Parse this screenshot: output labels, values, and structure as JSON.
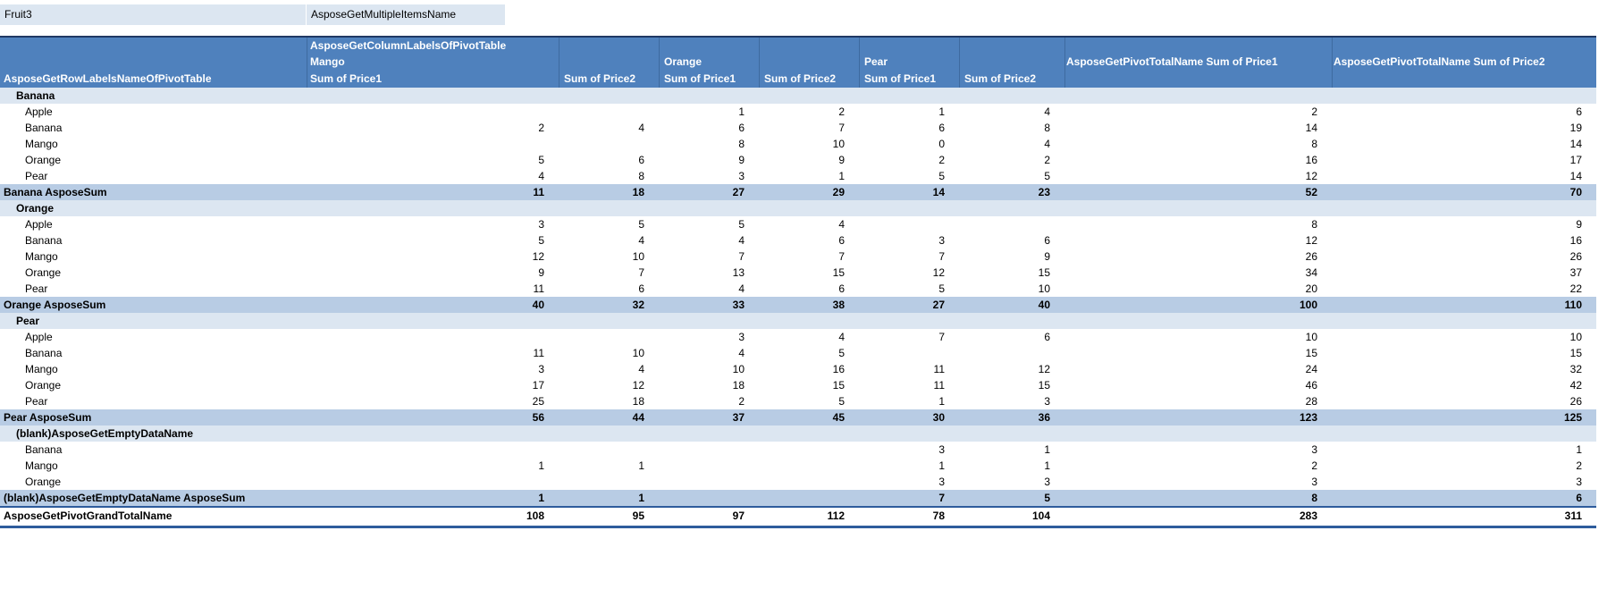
{
  "filter_row": {
    "field_label": "Fruit3",
    "value_label": "AsposeGetMultipleItemsName"
  },
  "pivot_header": {
    "column_labels_title": "AsposeGetColumnLabelsOfPivotTable",
    "row_labels_title": "AsposeGetRowLabelsNameOfPivotTable",
    "col_group_labels": [
      "Mango",
      "Orange",
      "Pear"
    ],
    "measure_labels": [
      "Sum of Price1",
      "Sum of Price2"
    ],
    "grand_total_col_labels": [
      "AsposeGetPivotTotalName Sum of Price1",
      "AsposeGetPivotTotalName Sum of Price2"
    ]
  },
  "pivot_rows": [
    {
      "type": "group",
      "label": "Banana",
      "values": [
        "",
        "",
        "",
        "",
        "",
        "",
        "",
        ""
      ]
    },
    {
      "type": "item",
      "label": "Apple",
      "values": [
        "",
        "",
        1,
        2,
        1,
        4,
        2,
        6
      ]
    },
    {
      "type": "item",
      "label": "Banana",
      "values": [
        2,
        4,
        6,
        7,
        6,
        8,
        14,
        19
      ]
    },
    {
      "type": "item",
      "label": "Mango",
      "values": [
        "",
        "",
        8,
        10,
        0,
        4,
        8,
        14
      ]
    },
    {
      "type": "item",
      "label": "Orange",
      "values": [
        5,
        6,
        9,
        9,
        2,
        2,
        16,
        17
      ]
    },
    {
      "type": "item",
      "label": "Pear",
      "values": [
        4,
        8,
        3,
        1,
        5,
        5,
        12,
        14
      ]
    },
    {
      "type": "subtotal",
      "label": "Banana AsposeSum",
      "values": [
        11,
        18,
        27,
        29,
        14,
        23,
        52,
        70
      ]
    },
    {
      "type": "group",
      "label": "Orange",
      "values": [
        "",
        "",
        "",
        "",
        "",
        "",
        "",
        ""
      ]
    },
    {
      "type": "item",
      "label": "Apple",
      "values": [
        3,
        5,
        5,
        4,
        "",
        "",
        8,
        9
      ]
    },
    {
      "type": "item",
      "label": "Banana",
      "values": [
        5,
        4,
        4,
        6,
        3,
        6,
        12,
        16
      ]
    },
    {
      "type": "item",
      "label": "Mango",
      "values": [
        12,
        10,
        7,
        7,
        7,
        9,
        26,
        26
      ]
    },
    {
      "type": "item",
      "label": "Orange",
      "values": [
        9,
        7,
        13,
        15,
        12,
        15,
        34,
        37
      ]
    },
    {
      "type": "item",
      "label": "Pear",
      "values": [
        11,
        6,
        4,
        6,
        5,
        10,
        20,
        22
      ]
    },
    {
      "type": "subtotal",
      "label": "Orange AsposeSum",
      "values": [
        40,
        32,
        33,
        38,
        27,
        40,
        100,
        110
      ]
    },
    {
      "type": "group",
      "label": "Pear",
      "values": [
        "",
        "",
        "",
        "",
        "",
        "",
        "",
        ""
      ]
    },
    {
      "type": "item",
      "label": "Apple",
      "values": [
        "",
        "",
        3,
        4,
        7,
        6,
        10,
        10
      ]
    },
    {
      "type": "item",
      "label": "Banana",
      "values": [
        11,
        10,
        4,
        5,
        "",
        "",
        15,
        15
      ]
    },
    {
      "type": "item",
      "label": "Mango",
      "values": [
        3,
        4,
        10,
        16,
        11,
        12,
        24,
        32
      ]
    },
    {
      "type": "item",
      "label": "Orange",
      "values": [
        17,
        12,
        18,
        15,
        11,
        15,
        46,
        42
      ]
    },
    {
      "type": "item",
      "label": "Pear",
      "values": [
        25,
        18,
        2,
        5,
        1,
        3,
        28,
        26
      ]
    },
    {
      "type": "subtotal",
      "label": "Pear AsposeSum",
      "values": [
        56,
        44,
        37,
        45,
        30,
        36,
        123,
        125
      ]
    },
    {
      "type": "group",
      "label": "(blank)AsposeGetEmptyDataName",
      "values": [
        "",
        "",
        "",
        "",
        "",
        "",
        "",
        ""
      ]
    },
    {
      "type": "item",
      "label": "Banana",
      "values": [
        "",
        "",
        "",
        "",
        3,
        1,
        3,
        1
      ]
    },
    {
      "type": "item",
      "label": "Mango",
      "values": [
        1,
        1,
        "",
        "",
        1,
        1,
        2,
        2
      ]
    },
    {
      "type": "item",
      "label": "Orange",
      "values": [
        "",
        "",
        "",
        "",
        3,
        3,
        3,
        3
      ]
    },
    {
      "type": "subtotal",
      "label": "(blank)AsposeGetEmptyDataName AsposeSum",
      "values": [
        1,
        1,
        "",
        "",
        7,
        5,
        8,
        6
      ]
    },
    {
      "type": "grandtotal",
      "label": "AsposeGetPivotGrandTotalName",
      "values": [
        108,
        95,
        97,
        112,
        78,
        104,
        283,
        311
      ]
    }
  ],
  "colors": {
    "header_fill": "#4f81bd",
    "header_top_border": "#1f3864",
    "group_band_fill": "#dce6f1",
    "subtotal_band_fill": "#b8cce4",
    "filter_fill": "#dce6f1",
    "grand_total_line": "#2e5c9c",
    "header_text": "#ffffff",
    "body_text": "#000000"
  }
}
